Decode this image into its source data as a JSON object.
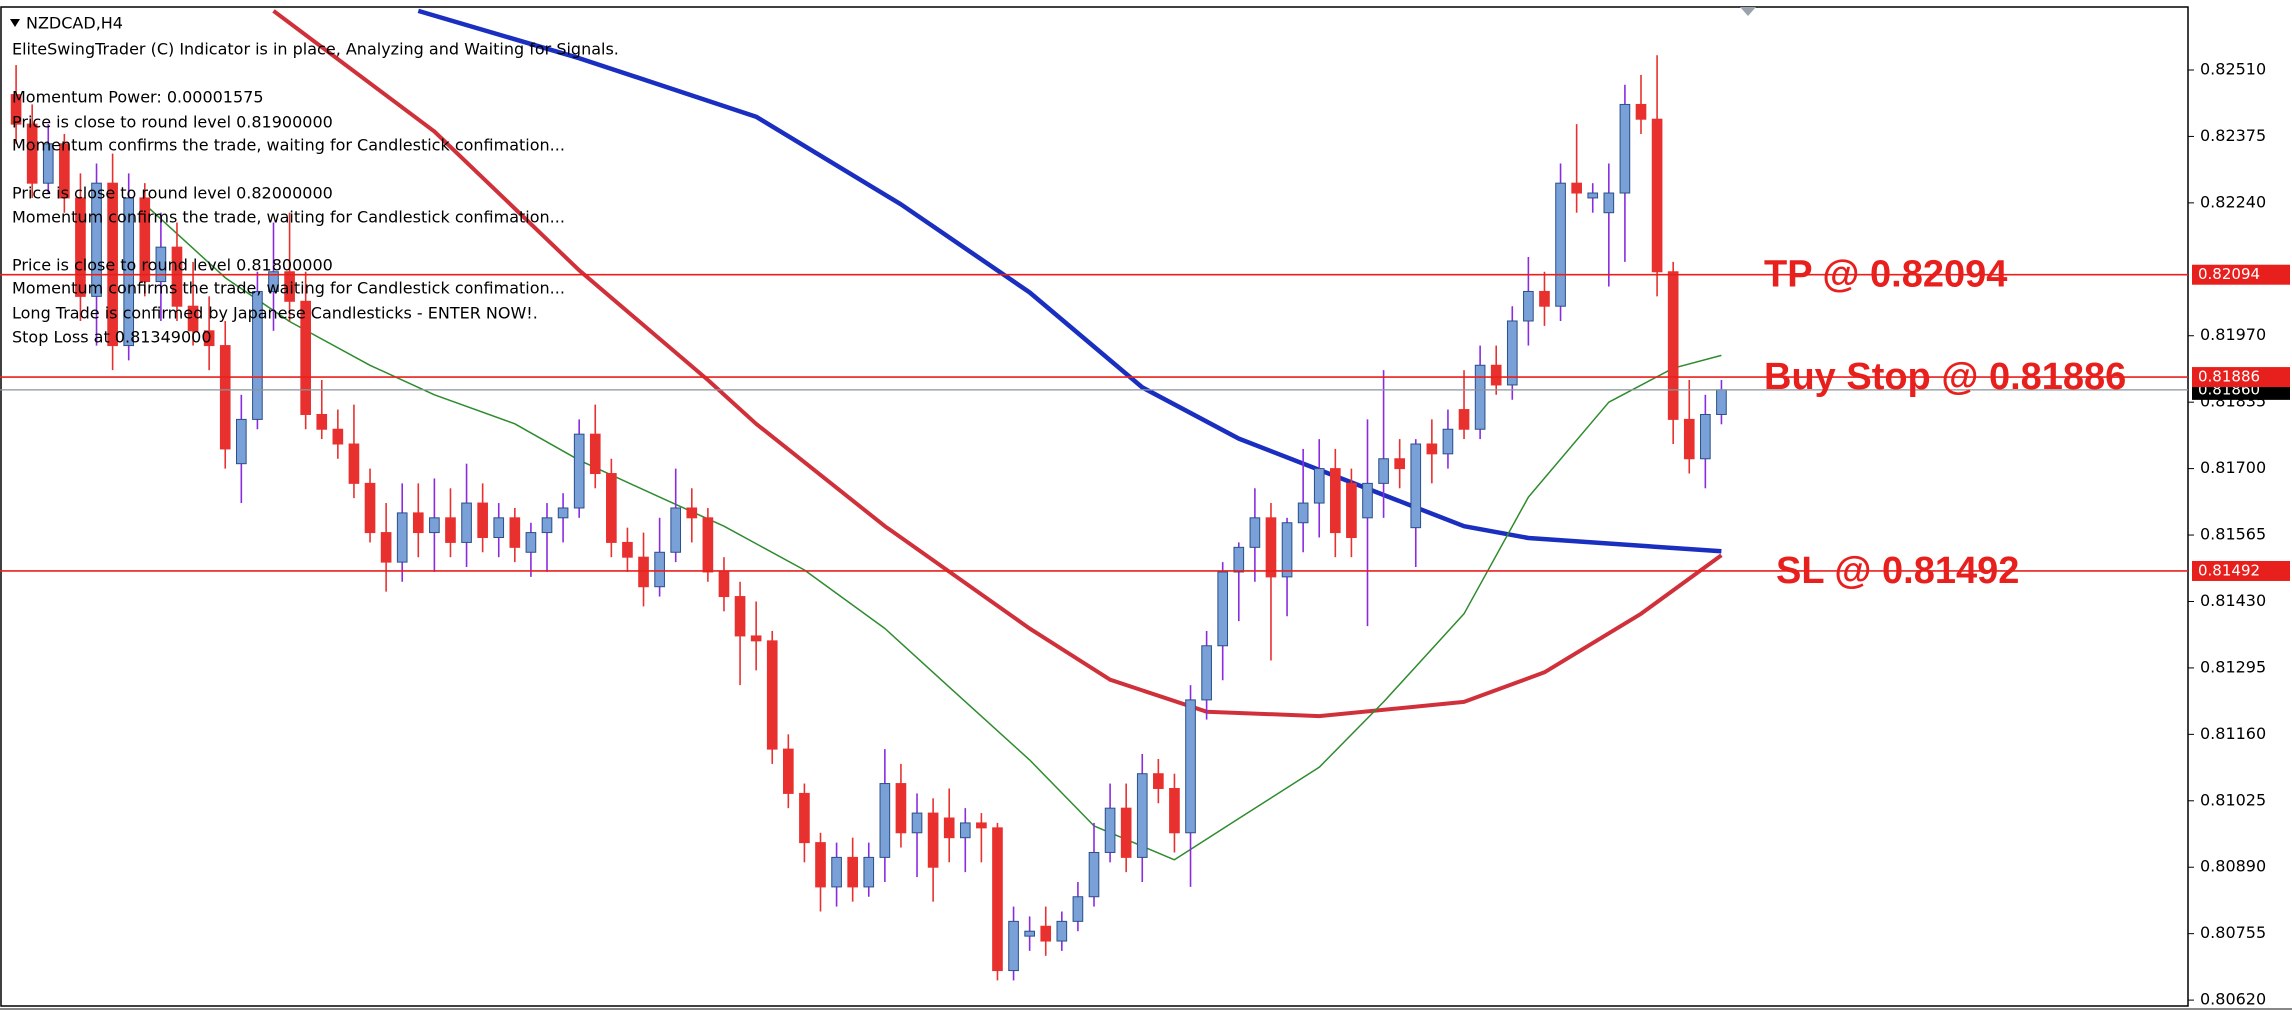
{
  "chart_data": {
    "type": "candlestick",
    "title": "NZDCAD,H4",
    "annotations": [
      "EliteSwingTrader (C) Indicator is in place, Analyzing and Waiting for Signals.",
      "Momentum Power: 0.00001575",
      "Price is close to round level 0.81900000",
      "Momentum confirms the trade, waiting for Candlestick confimation...",
      "Price is close to round level 0.82000000",
      "Momentum confirms the trade, waiting for Candlestick confimation...",
      "Price is close to round level 0.81800000",
      "Momentum confirms the trade, waiting for Candlestick confimation...",
      "Long Trade is confirmed by Japanese Candlesticks - ENTER NOW!.",
      "Stop Loss at 0.81349000"
    ],
    "xlim": [
      -1,
      135
    ],
    "ylim": [
      0.80608,
      0.82638
    ],
    "yticks": [
      {
        "value": 0.8251,
        "label": "0.82510"
      },
      {
        "value": 0.82375,
        "label": "0.82375"
      },
      {
        "value": 0.8224,
        "label": "0.82240"
      },
      {
        "value": 0.8197,
        "label": "0.81970"
      },
      {
        "value": 0.81835,
        "label": "0.81835"
      },
      {
        "value": 0.817,
        "label": "0.81700"
      },
      {
        "value": 0.81565,
        "label": "0.81565"
      },
      {
        "value": 0.8143,
        "label": "0.81430"
      },
      {
        "value": 0.81295,
        "label": "0.81295"
      },
      {
        "value": 0.8116,
        "label": "0.81160"
      },
      {
        "value": 0.81025,
        "label": "0.81025"
      },
      {
        "value": 0.8089,
        "label": "0.80890"
      },
      {
        "value": 0.80755,
        "label": "0.80755"
      },
      {
        "value": 0.8062,
        "label": "0.80620"
      }
    ],
    "up_color": "#7aa0d8",
    "down_color": "#e8312f",
    "open": [
      0.8246,
      0.824,
      0.8228,
      0.8236,
      0.8225,
      0.8205,
      0.8228,
      0.8195,
      0.8225,
      0.8208,
      0.8215,
      0.8203,
      0.8198,
      0.8195,
      0.8171,
      0.818,
      0.8206,
      0.821,
      0.8204,
      0.8181,
      0.8178,
      0.8175,
      0.8167,
      0.8157,
      0.8151,
      0.8161,
      0.8157,
      0.816,
      0.8155,
      0.8163,
      0.8156,
      0.816,
      0.8153,
      0.8157,
      0.816,
      0.8162,
      0.8177,
      0.8169,
      0.8155,
      0.8152,
      0.8146,
      0.8153,
      0.8162,
      0.816,
      0.8149,
      0.8144,
      0.8136,
      0.8135,
      0.8113,
      0.8104,
      0.8094,
      0.8085,
      0.8091,
      0.8085,
      0.8091,
      0.8106,
      0.8096,
      0.81,
      0.8099,
      0.8095,
      0.8098,
      0.8097,
      0.8068,
      0.8075,
      0.8077,
      0.8074,
      0.8078,
      0.8083,
      0.8092,
      0.8101,
      0.8091,
      0.8108,
      0.8105,
      0.8096,
      0.8123,
      0.8134,
      0.8149,
      0.8154,
      0.816,
      0.8148,
      0.8159,
      0.8163,
      0.817,
      0.8167,
      0.816,
      0.8167,
      0.8172,
      0.8158,
      0.8175,
      0.8173,
      0.8182,
      0.8178,
      0.8191,
      0.8187,
      0.82,
      0.8206,
      0.8203,
      0.8228,
      0.8225,
      0.8222,
      0.8226,
      0.8244,
      0.8241,
      0.821,
      0.818,
      0.8172,
      0.8181
    ],
    "high": [
      0.8252,
      0.8244,
      0.824,
      0.8238,
      0.823,
      0.8232,
      0.8234,
      0.823,
      0.8228,
      0.8222,
      0.822,
      0.8212,
      0.8205,
      0.82,
      0.8185,
      0.821,
      0.822,
      0.8222,
      0.821,
      0.8188,
      0.8182,
      0.8183,
      0.817,
      0.8163,
      0.8167,
      0.8167,
      0.8168,
      0.8166,
      0.8171,
      0.8167,
      0.8163,
      0.8162,
      0.8159,
      0.8163,
      0.8165,
      0.818,
      0.8183,
      0.8172,
      0.8158,
      0.8157,
      0.816,
      0.817,
      0.8166,
      0.8162,
      0.8152,
      0.8147,
      0.8143,
      0.8137,
      0.8116,
      0.8106,
      0.8096,
      0.8094,
      0.8095,
      0.8094,
      0.8113,
      0.811,
      0.8104,
      0.8103,
      0.8105,
      0.8101,
      0.81,
      0.8098,
      0.8081,
      0.8079,
      0.8081,
      0.808,
      0.8086,
      0.8098,
      0.8106,
      0.8106,
      0.8112,
      0.8111,
      0.8108,
      0.8126,
      0.8137,
      0.8151,
      0.8155,
      0.8166,
      0.8163,
      0.816,
      0.8174,
      0.8176,
      0.8174,
      0.817,
      0.818,
      0.819,
      0.8176,
      0.8176,
      0.818,
      0.8182,
      0.819,
      0.8195,
      0.8195,
      0.8203,
      0.8213,
      0.821,
      0.8232,
      0.824,
      0.8228,
      0.8232,
      0.8248,
      0.825,
      0.8254,
      0.8212,
      0.8188,
      0.8185,
      0.8188
    ],
    "low": [
      0.8236,
      0.8225,
      0.8226,
      0.8222,
      0.82,
      0.8195,
      0.819,
      0.8192,
      0.8205,
      0.82,
      0.82,
      0.8195,
      0.819,
      0.817,
      0.8163,
      0.8178,
      0.8198,
      0.82,
      0.8178,
      0.8176,
      0.8172,
      0.8164,
      0.8155,
      0.8145,
      0.8147,
      0.8152,
      0.8149,
      0.8152,
      0.815,
      0.8153,
      0.8152,
      0.8151,
      0.8148,
      0.8149,
      0.8155,
      0.816,
      0.8166,
      0.8152,
      0.8149,
      0.8142,
      0.8144,
      0.8151,
      0.8155,
      0.8147,
      0.8141,
      0.8126,
      0.8129,
      0.811,
      0.8101,
      0.809,
      0.808,
      0.8081,
      0.8082,
      0.8083,
      0.8086,
      0.8093,
      0.8087,
      0.8082,
      0.809,
      0.8088,
      0.809,
      0.8066,
      0.8066,
      0.8072,
      0.8071,
      0.8072,
      0.8076,
      0.8081,
      0.809,
      0.8088,
      0.8086,
      0.8102,
      0.8092,
      0.8085,
      0.8119,
      0.8127,
      0.8139,
      0.8147,
      0.8131,
      0.814,
      0.8153,
      0.8156,
      0.8152,
      0.8152,
      0.8138,
      0.816,
      0.8166,
      0.815,
      0.8167,
      0.817,
      0.8176,
      0.8176,
      0.8185,
      0.8184,
      0.8195,
      0.8199,
      0.82,
      0.8222,
      0.8222,
      0.8207,
      0.8212,
      0.8238,
      0.8205,
      0.8175,
      0.8169,
      0.8166,
      0.8179
    ],
    "close": [
      0.824,
      0.8228,
      0.8236,
      0.8225,
      0.8205,
      0.8228,
      0.8195,
      0.8225,
      0.8208,
      0.8215,
      0.8203,
      0.8198,
      0.8195,
      0.8174,
      0.818,
      0.8206,
      0.821,
      0.8204,
      0.8181,
      0.8178,
      0.8175,
      0.8167,
      0.8157,
      0.8151,
      0.8161,
      0.8157,
      0.816,
      0.8155,
      0.8163,
      0.8156,
      0.816,
      0.8154,
      0.8157,
      0.816,
      0.8162,
      0.8177,
      0.8169,
      0.8155,
      0.8152,
      0.8146,
      0.8153,
      0.8162,
      0.816,
      0.8149,
      0.8144,
      0.8136,
      0.8135,
      0.8113,
      0.8104,
      0.8094,
      0.8085,
      0.8091,
      0.8085,
      0.8091,
      0.8106,
      0.8096,
      0.81,
      0.8089,
      0.8095,
      0.8098,
      0.8097,
      0.8068,
      0.8078,
      0.8076,
      0.8074,
      0.8078,
      0.8083,
      0.8092,
      0.8101,
      0.8091,
      0.8108,
      0.8105,
      0.8096,
      0.8123,
      0.8134,
      0.8149,
      0.8154,
      0.816,
      0.8148,
      0.8159,
      0.8163,
      0.817,
      0.8157,
      0.8156,
      0.8167,
      0.8172,
      0.817,
      0.8175,
      0.8173,
      0.8178,
      0.8178,
      0.8191,
      0.8187,
      0.82,
      0.8206,
      0.8203,
      0.8228,
      0.8226,
      0.8226,
      0.8226,
      0.8244,
      0.8241,
      0.821,
      0.818,
      0.8172,
      0.8181,
      0.8186
    ],
    "lines": [
      {
        "color": "#1a2fc0",
        "width": 4.5,
        "x": [
          25,
          35,
          46,
          55,
          63,
          70,
          76,
          83,
          90,
          94,
          106
        ],
        "values": [
          0.8263,
          0.82534,
          0.82415,
          0.82237,
          0.82058,
          0.81865,
          0.81761,
          0.81672,
          0.81583,
          0.81559,
          0.81532
        ]
      },
      {
        "color": "#d0303a",
        "width": 4,
        "x": [
          16,
          26,
          35,
          43,
          46,
          54,
          63,
          68,
          74,
          81,
          90,
          95,
          101,
          106
        ],
        "values": [
          0.8263,
          0.82385,
          0.82103,
          0.8188,
          0.81791,
          0.81583,
          0.81375,
          0.81271,
          0.81206,
          0.81197,
          0.81226,
          0.81286,
          0.81405,
          0.81524
        ]
      },
      {
        "color": "#2e8b2e",
        "width": 1.5,
        "x": [
          8,
          13,
          17,
          22,
          26,
          31,
          35,
          40,
          44,
          49,
          54,
          58,
          63,
          67,
          72,
          76,
          81,
          85,
          90,
          94,
          99,
          103,
          106
        ],
        "values": [
          0.82237,
          0.82088,
          0.81999,
          0.8191,
          0.8185,
          0.81791,
          0.81717,
          0.81642,
          0.81583,
          0.81494,
          0.81375,
          0.81256,
          0.81108,
          0.80974,
          0.80905,
          0.80989,
          0.81093,
          0.81226,
          0.81405,
          0.81642,
          0.81835,
          0.81904,
          0.8193
        ]
      }
    ],
    "levels": [
      {
        "label": "TP @ 0.82094",
        "value": 0.82094,
        "value_label": "0.82094",
        "color": "#e8201d"
      },
      {
        "label": "Buy Stop @ 0.81886",
        "value": 0.81886,
        "value_label": "0.81886",
        "color": "#e8201d"
      },
      {
        "label": "SL @ 0.81492",
        "value": 0.81492,
        "value_label": "0.81492",
        "color": "#e8201d"
      }
    ],
    "current_price": {
      "value": 0.8186,
      "value_label": "0.81860",
      "color": "#000000"
    }
  }
}
